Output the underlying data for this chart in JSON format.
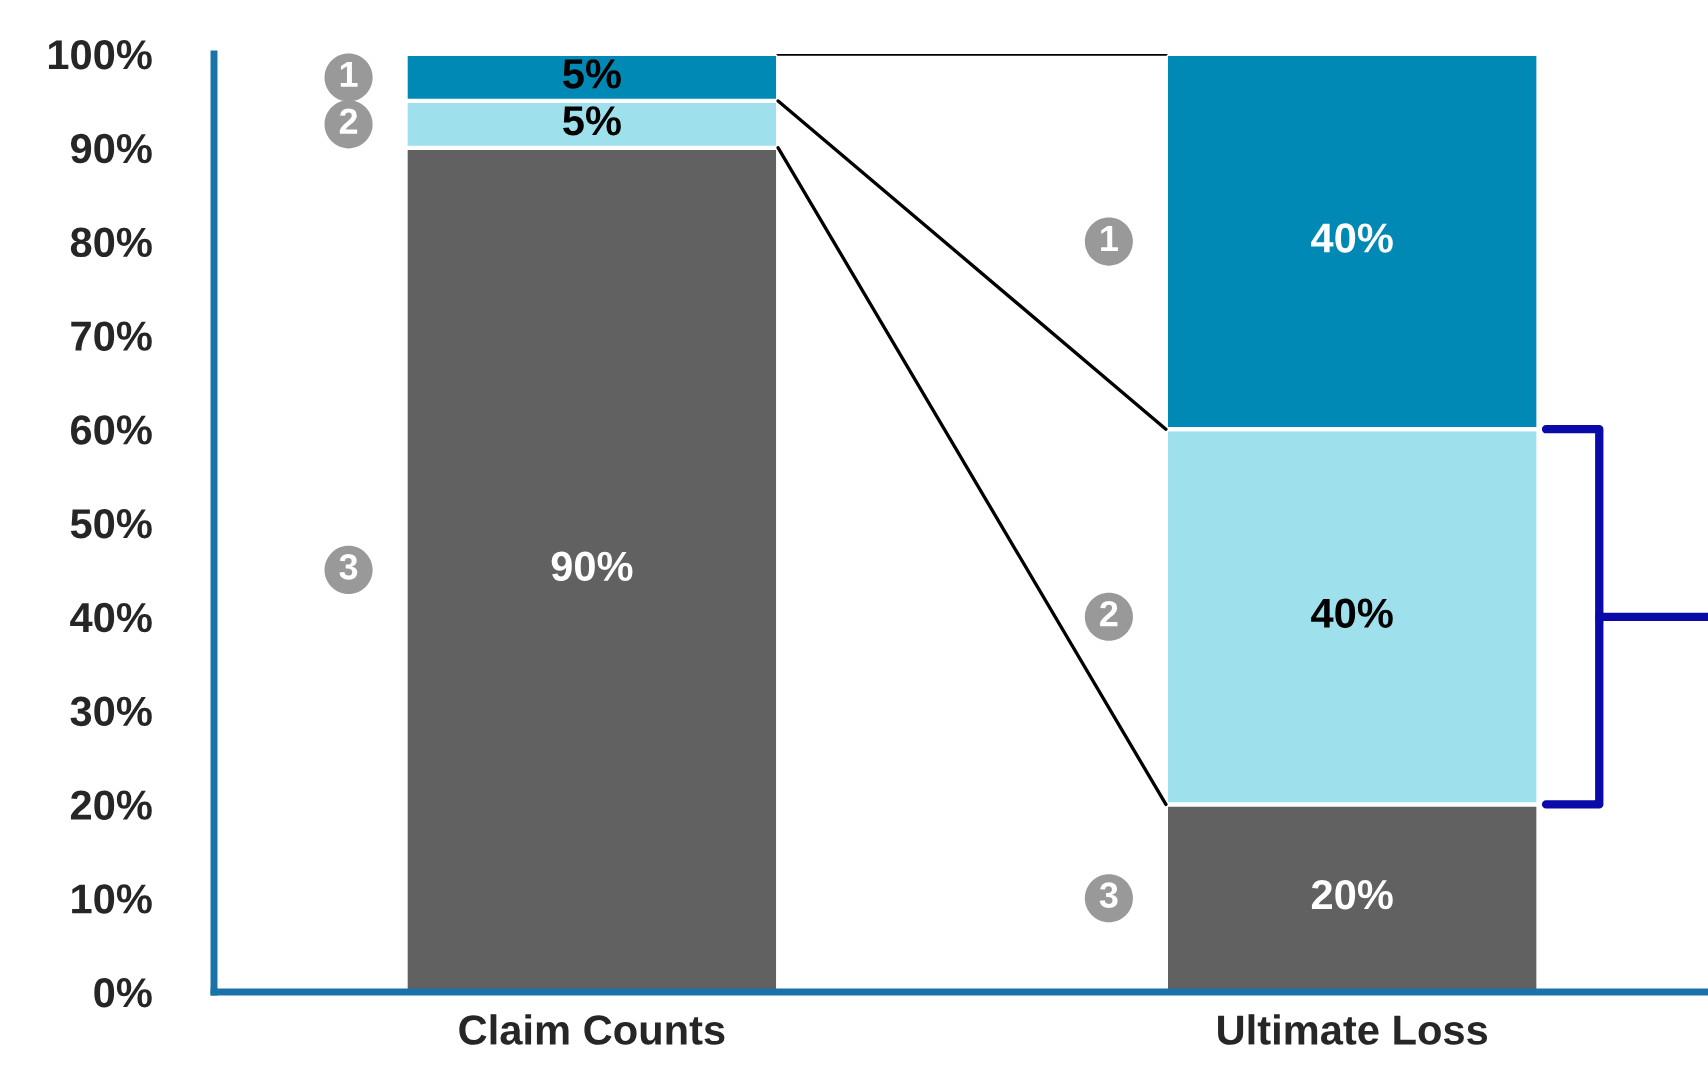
{
  "chart_data": {
    "type": "bar",
    "stacked": true,
    "categories": [
      "Claim Counts",
      "Ultimate Loss"
    ],
    "series": [
      {
        "color": "#616161",
        "values": [
          90,
          20
        ],
        "value_labels": [
          "90%",
          "20%"
        ]
      },
      {
        "color": "#9ee0ec",
        "values": [
          5,
          40
        ],
        "value_labels": [
          "5%",
          "40%"
        ]
      },
      {
        "color": "#0089b4",
        "values": [
          5,
          40
        ],
        "value_labels": [
          "5%",
          "40%"
        ]
      }
    ],
    "ylim": [
      0,
      100
    ],
    "yticks": [
      {
        "value": 0,
        "label": "0%"
      },
      {
        "value": 10,
        "label": "10%"
      },
      {
        "value": 20,
        "label": "20%"
      },
      {
        "value": 30,
        "label": "30%"
      },
      {
        "value": 40,
        "label": "40%"
      },
      {
        "value": 50,
        "label": "50%"
      },
      {
        "value": 60,
        "label": "60%"
      },
      {
        "value": 70,
        "label": "70%"
      },
      {
        "value": 80,
        "label": "80%"
      },
      {
        "value": 90,
        "label": "90%"
      },
      {
        "value": 100,
        "label": "100%"
      }
    ],
    "annotations": [
      "1",
      "2",
      "3",
      "1",
      "2",
      "3"
    ],
    "grid": false,
    "legend": false
  }
}
